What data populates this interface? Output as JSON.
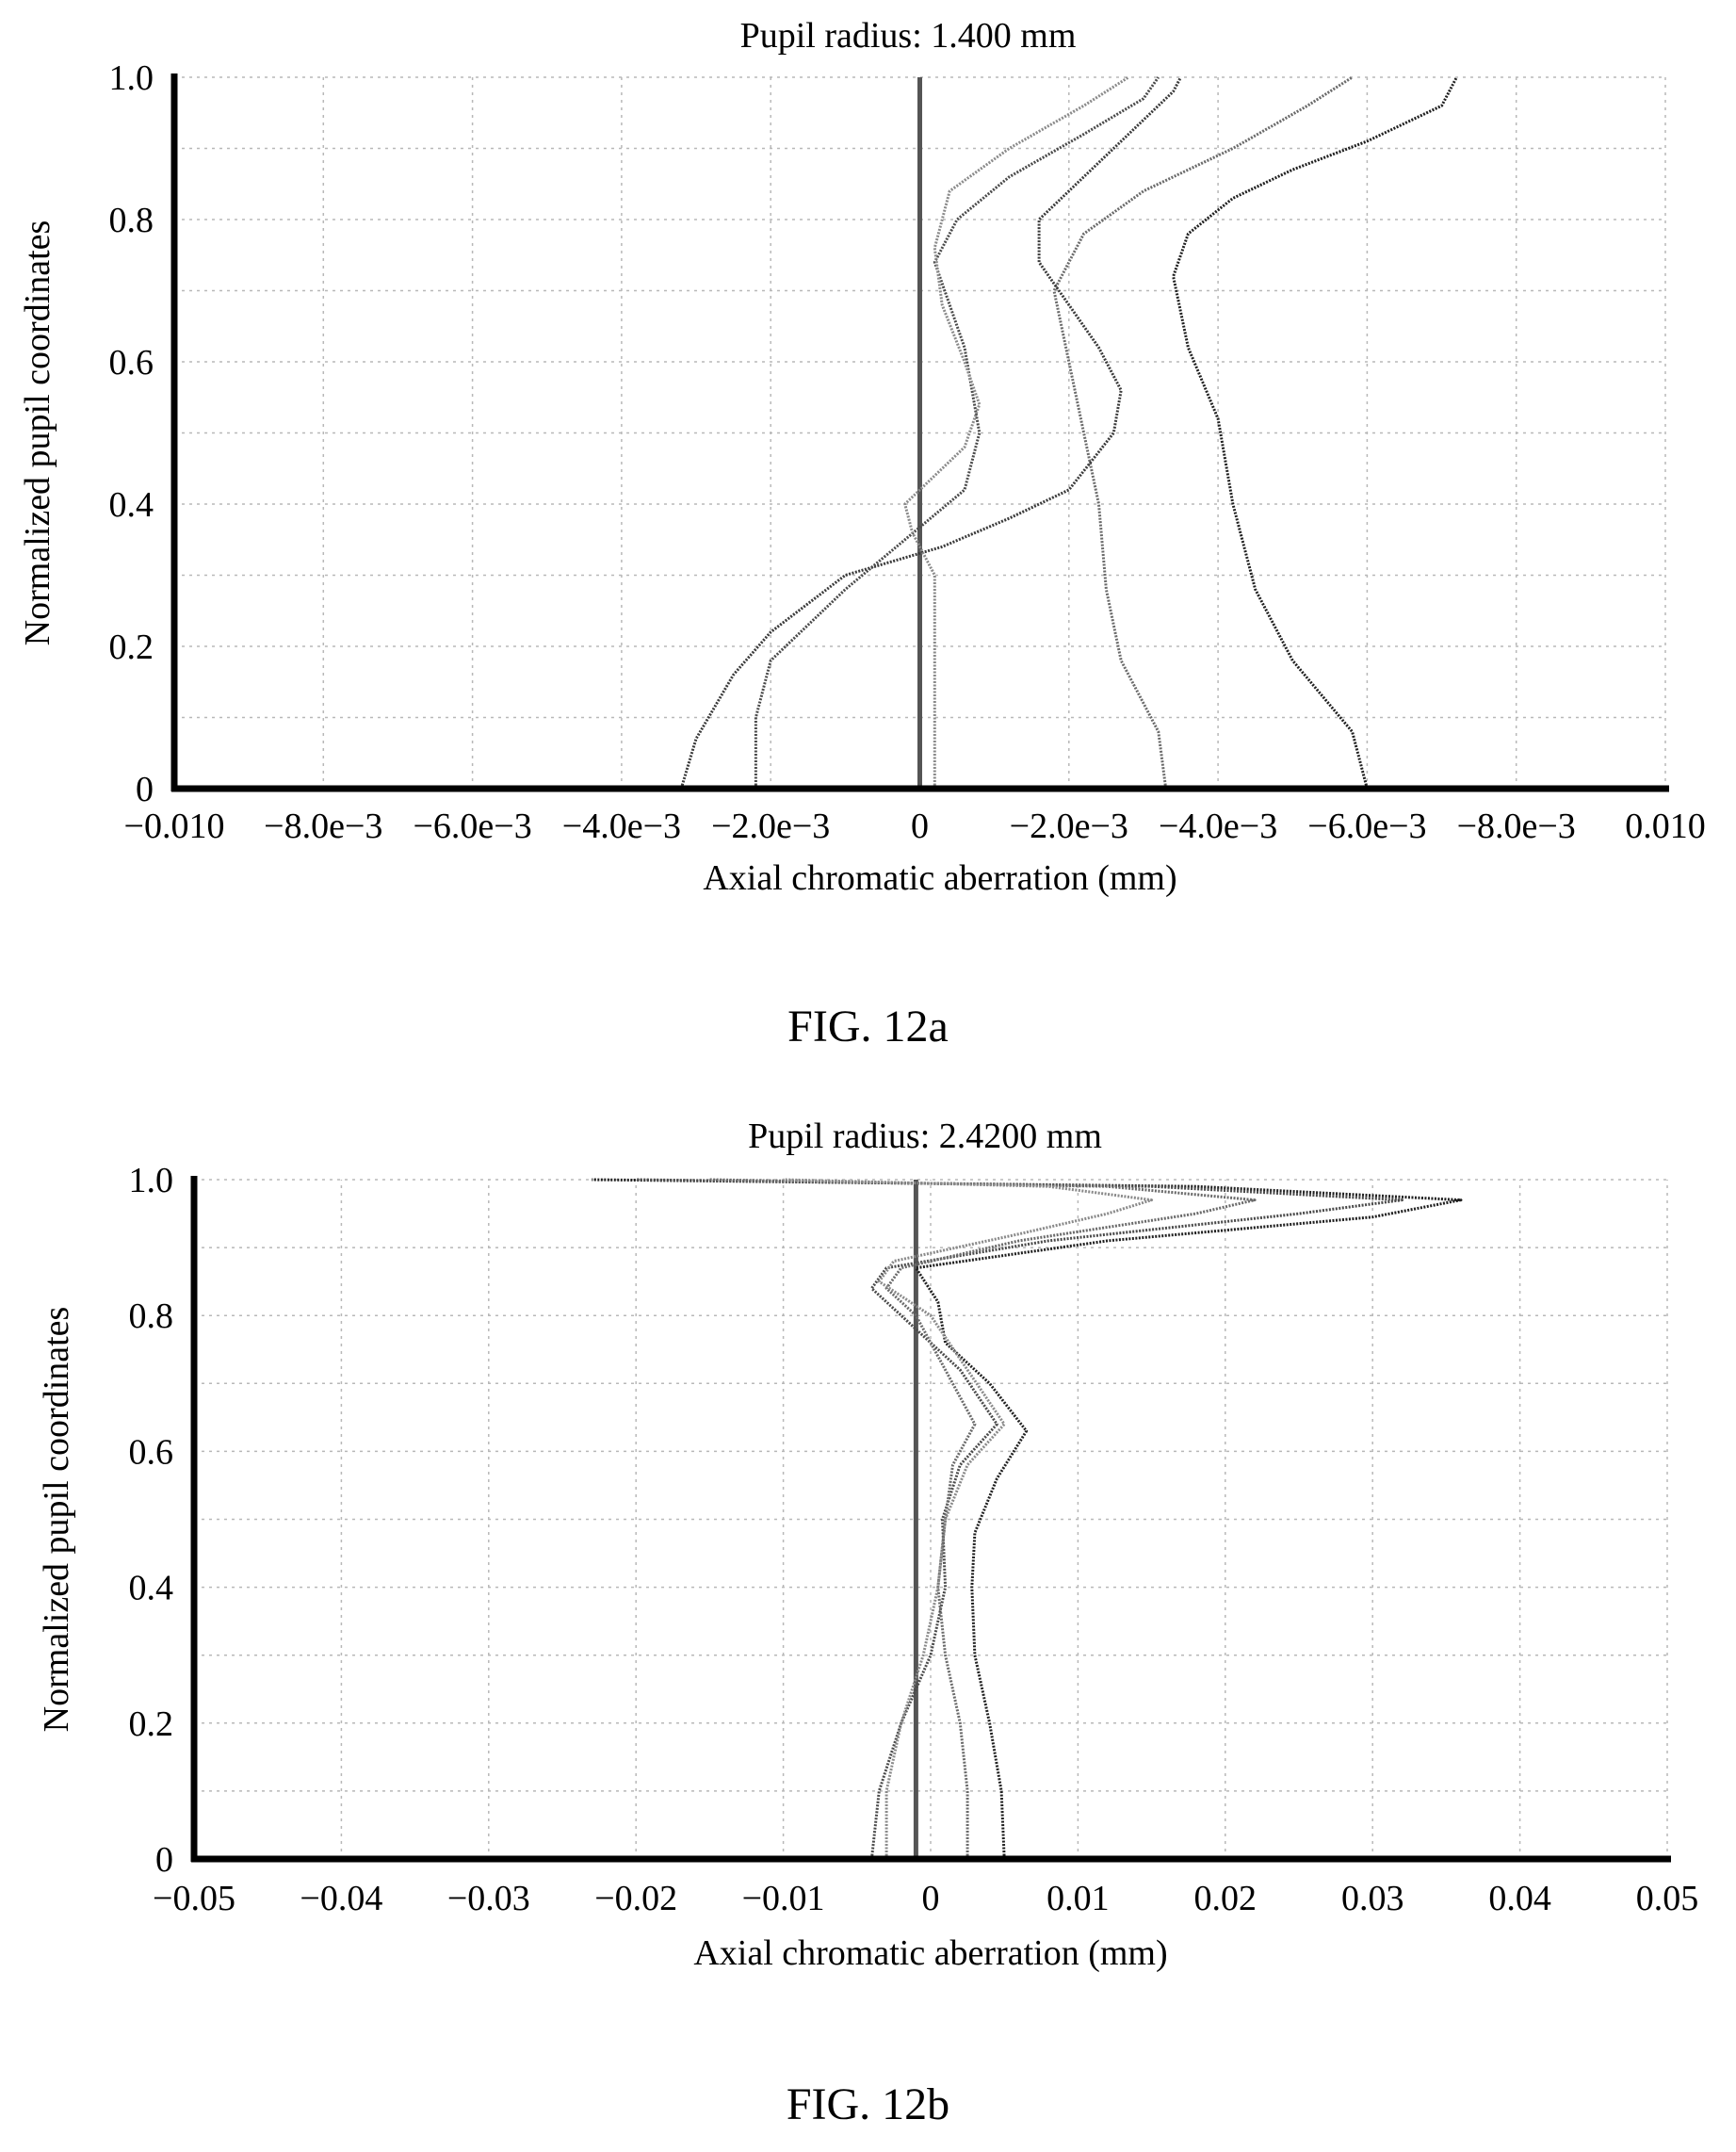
{
  "figures": [
    {
      "caption": "FIG. 12a"
    },
    {
      "caption": "FIG. 12b"
    }
  ],
  "chart_data": [
    {
      "type": "line",
      "title": "Pupil radius: 1.400 mm",
      "xlabel": "Axial chromatic aberration (mm)",
      "ylabel": "Normalized pupil coordinates",
      "xlim": [
        -0.01,
        0.01
      ],
      "ylim": [
        0,
        1.0
      ],
      "grid": true,
      "x_ticks": [
        -0.01,
        -0.008,
        -0.006,
        -0.004,
        -0.002,
        0,
        0.002,
        0.004,
        0.006,
        0.008,
        0.01
      ],
      "x_tick_labels": [
        "−0.010",
        "−8.0e−3",
        "−6.0e−3",
        "−4.0e−3",
        "−2.0e−3",
        "0",
        "−2.0e−3",
        "−4.0e−3",
        "−6.0e−3",
        "−8.0e−3",
        "0.010"
      ],
      "y_ticks": [
        0,
        0.2,
        0.4,
        0.6,
        0.8,
        1.0
      ],
      "y_tick_labels": [
        "0",
        "0.2",
        "0.4",
        "0.6",
        "0.8",
        "1.0"
      ],
      "series": [
        {
          "color": "#555555",
          "points": [
            [
              0,
              0
            ],
            [
              0,
              0.2
            ],
            [
              0,
              0.4
            ],
            [
              0,
              0.6
            ],
            [
              0,
              0.8
            ],
            [
              0,
              1.0
            ]
          ]
        },
        {
          "color": "#202020",
          "points": [
            [
              0.006,
              0
            ],
            [
              0.0058,
              0.08
            ],
            [
              0.005,
              0.18
            ],
            [
              0.0045,
              0.28
            ],
            [
              0.0042,
              0.4
            ],
            [
              0.004,
              0.52
            ],
            [
              0.0036,
              0.62
            ],
            [
              0.0034,
              0.72
            ],
            [
              0.0036,
              0.78
            ],
            [
              0.0042,
              0.83
            ],
            [
              0.005,
              0.87
            ],
            [
              0.006,
              0.91
            ],
            [
              0.007,
              0.96
            ],
            [
              0.0072,
              1.0
            ]
          ]
        },
        {
          "color": "#6a6a6a",
          "points": [
            [
              0.0033,
              0
            ],
            [
              0.0032,
              0.08
            ],
            [
              0.0027,
              0.18
            ],
            [
              0.0025,
              0.28
            ],
            [
              0.0024,
              0.4
            ],
            [
              0.0022,
              0.5
            ],
            [
              0.002,
              0.6
            ],
            [
              0.0018,
              0.7
            ],
            [
              0.0022,
              0.78
            ],
            [
              0.003,
              0.84
            ],
            [
              0.0042,
              0.9
            ],
            [
              0.0052,
              0.96
            ],
            [
              0.0058,
              1.0
            ]
          ]
        },
        {
          "color": "#3a3a3a",
          "points": [
            [
              -0.0032,
              0
            ],
            [
              -0.003,
              0.07
            ],
            [
              -0.0025,
              0.16
            ],
            [
              -0.002,
              0.22
            ],
            [
              -0.001,
              0.3
            ],
            [
              0.0003,
              0.34
            ],
            [
              0.0012,
              0.38
            ],
            [
              0.002,
              0.42
            ],
            [
              0.0026,
              0.5
            ],
            [
              0.0027,
              0.56
            ],
            [
              0.0024,
              0.62
            ],
            [
              0.002,
              0.68
            ],
            [
              0.0016,
              0.74
            ],
            [
              0.0016,
              0.8
            ],
            [
              0.0022,
              0.86
            ],
            [
              0.0028,
              0.92
            ],
            [
              0.0034,
              0.98
            ],
            [
              0.0035,
              1.0
            ]
          ]
        },
        {
          "color": "#4a4a4a",
          "points": [
            [
              -0.0022,
              0
            ],
            [
              -0.0022,
              0.1
            ],
            [
              -0.002,
              0.18
            ],
            [
              -0.001,
              0.28
            ],
            [
              -0.0002,
              0.35
            ],
            [
              0.0006,
              0.42
            ],
            [
              0.0008,
              0.5
            ],
            [
              0.0007,
              0.56
            ],
            [
              0.0006,
              0.62
            ],
            [
              0.0004,
              0.68
            ],
            [
              0.0002,
              0.74
            ],
            [
              0.0005,
              0.8
            ],
            [
              0.0012,
              0.86
            ],
            [
              0.0022,
              0.92
            ],
            [
              0.003,
              0.97
            ],
            [
              0.0032,
              1.0
            ]
          ]
        },
        {
          "color": "#8a8a8a",
          "points": [
            [
              0.0002,
              0
            ],
            [
              0.0002,
              0.15
            ],
            [
              0.0002,
              0.3
            ],
            [
              -0.0001,
              0.36
            ],
            [
              -0.0002,
              0.4
            ],
            [
              0.0006,
              0.48
            ],
            [
              0.0008,
              0.54
            ],
            [
              0.0006,
              0.6
            ],
            [
              0.0003,
              0.68
            ],
            [
              0.0002,
              0.76
            ],
            [
              0.0004,
              0.84
            ],
            [
              0.0012,
              0.9
            ],
            [
              0.0022,
              0.96
            ],
            [
              0.0028,
              1.0
            ]
          ]
        }
      ]
    },
    {
      "type": "line",
      "title": "Pupil radius: 2.4200 mm",
      "xlabel": "Axial chromatic aberration (mm)",
      "ylabel": "Normalized pupil coordinates",
      "xlim": [
        -0.05,
        0.05
      ],
      "ylim": [
        0,
        1.0
      ],
      "grid": true,
      "x_ticks": [
        -0.05,
        -0.04,
        -0.03,
        -0.02,
        -0.01,
        0,
        0.01,
        0.02,
        0.03,
        0.04,
        0.05
      ],
      "x_tick_labels": [
        "−0.05",
        "−0.04",
        "−0.03",
        "−0.02",
        "−0.01",
        "0",
        "0.01",
        "0.02",
        "0.03",
        "0.04",
        "0.05"
      ],
      "y_ticks": [
        0,
        0.2,
        0.4,
        0.6,
        0.8,
        1.0
      ],
      "y_tick_labels": [
        "0",
        "0.2",
        "0.4",
        "0.6",
        "0.8",
        "1.0"
      ],
      "series": [
        {
          "color": "#555555",
          "points": [
            [
              -0.001,
              0
            ],
            [
              -0.001,
              0.2
            ],
            [
              -0.001,
              0.4
            ],
            [
              -0.001,
              0.6
            ],
            [
              -0.001,
              0.8
            ],
            [
              -0.001,
              1.0
            ]
          ]
        },
        {
          "color": "#202020",
          "points": [
            [
              0.005,
              0
            ],
            [
              0.0048,
              0.1
            ],
            [
              0.004,
              0.2
            ],
            [
              0.003,
              0.3
            ],
            [
              0.0028,
              0.4
            ],
            [
              0.003,
              0.48
            ],
            [
              0.0045,
              0.56
            ],
            [
              0.0065,
              0.63
            ],
            [
              0.004,
              0.7
            ],
            [
              0.001,
              0.76
            ],
            [
              0.0005,
              0.82
            ],
            [
              -0.001,
              0.87
            ],
            [
              0.012,
              0.91
            ],
            [
              0.03,
              0.945
            ],
            [
              0.036,
              0.97
            ],
            [
              0.018,
              0.99
            ],
            [
              -0.023,
              1.0
            ]
          ]
        },
        {
          "color": "#4a4a4a",
          "points": [
            [
              -0.004,
              0
            ],
            [
              -0.0035,
              0.1
            ],
            [
              -0.002,
              0.2
            ],
            [
              0.0,
              0.3
            ],
            [
              0.001,
              0.4
            ],
            [
              0.0008,
              0.5
            ],
            [
              0.002,
              0.58
            ],
            [
              0.0045,
              0.64
            ],
            [
              0.002,
              0.72
            ],
            [
              -0.002,
              0.8
            ],
            [
              -0.004,
              0.84
            ],
            [
              -0.003,
              0.87
            ],
            [
              0.008,
              0.91
            ],
            [
              0.025,
              0.95
            ],
            [
              0.032,
              0.97
            ],
            [
              0.015,
              0.99
            ],
            [
              -0.02,
              1.0
            ]
          ]
        },
        {
          "color": "#6a6a6a",
          "points": [
            [
              0.0025,
              0
            ],
            [
              0.0025,
              0.1
            ],
            [
              0.002,
              0.2
            ],
            [
              0.001,
              0.3
            ],
            [
              0.0005,
              0.4
            ],
            [
              0.001,
              0.5
            ],
            [
              0.0015,
              0.58
            ],
            [
              0.003,
              0.64
            ],
            [
              0.001,
              0.72
            ],
            [
              -0.001,
              0.8
            ],
            [
              -0.003,
              0.84
            ],
            [
              -0.002,
              0.87
            ],
            [
              0.006,
              0.91
            ],
            [
              0.018,
              0.95
            ],
            [
              0.022,
              0.97
            ],
            [
              0.012,
              0.99
            ],
            [
              -0.015,
              1.0
            ]
          ]
        },
        {
          "color": "#8a8a8a",
          "points": [
            [
              -0.003,
              0
            ],
            [
              -0.003,
              0.1
            ],
            [
              -0.002,
              0.2
            ],
            [
              -0.0005,
              0.3
            ],
            [
              0.0005,
              0.4
            ],
            [
              0.001,
              0.5
            ],
            [
              0.0025,
              0.58
            ],
            [
              0.005,
              0.64
            ],
            [
              0.0025,
              0.72
            ],
            [
              0.0,
              0.8
            ],
            [
              -0.0035,
              0.85
            ],
            [
              -0.0025,
              0.88
            ],
            [
              0.006,
              0.92
            ],
            [
              0.012,
              0.95
            ],
            [
              0.015,
              0.97
            ],
            [
              0.008,
              0.99
            ],
            [
              -0.01,
              1.0
            ]
          ]
        }
      ]
    }
  ]
}
